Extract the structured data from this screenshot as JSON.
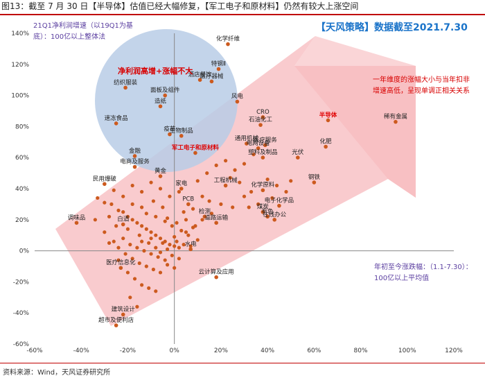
{
  "figure": {
    "title": "图13：截至 7 月 30 日【半导体】估值已经大幅修复，【军工电子和原材料】仍然有较大上涨空间",
    "source": "资料来源：Wind，天风证券研究所"
  },
  "chart_data": {
    "type": "scatter",
    "xlim": [
      -60,
      120
    ],
    "ylim": [
      -60,
      140
    ],
    "x_ticks": [
      -60,
      -40,
      -20,
      0,
      20,
      40,
      60,
      80,
      100,
      120
    ],
    "y_ticks": [
      -60,
      -40,
      -20,
      0,
      20,
      40,
      60,
      80,
      100,
      120,
      140
    ],
    "x_tick_labels": [
      "-60%",
      "-40%",
      "-20%",
      "0%",
      "20%",
      "40%",
      "60%",
      "80%",
      "100%",
      "120%"
    ],
    "y_tick_labels": [
      "-60%",
      "-40%",
      "-20%",
      "0%",
      "20%",
      "40%",
      "60%",
      "80%",
      "100%",
      "120%",
      "140%"
    ],
    "y_axis_label": "21Q1净利润增速（以19Q1为基底）：100亿以上整体法",
    "x_axis_label": "年初至今涨跌幅：（1.1-7.30）：100亿以上平均值",
    "badge": "【天风策略】数据截至2021.7.30",
    "circle_label": "净利润高增+涨幅不大",
    "arrow_annotation": "一年维度的涨幅大小与当年扣非增速高低，呈现单调正相关关系",
    "dot_color": "#cc5a1e",
    "labeled_points": [
      {
        "name": "化学纤维",
        "x": 23,
        "y": 133,
        "hl": false
      },
      {
        "name": "特钢Ⅱ",
        "x": 19,
        "y": 117,
        "hl": false
      },
      {
        "name": "医疗器械",
        "x": 16,
        "y": 109,
        "hl": false
      },
      {
        "name": "纺织服装",
        "x": -21,
        "y": 105,
        "hl": false
      },
      {
        "name": "酒店餐饮",
        "x": 11,
        "y": 110,
        "hl": false
      },
      {
        "name": "面板及组件",
        "x": -4,
        "y": 100,
        "hl": false
      },
      {
        "name": "风电",
        "x": 27,
        "y": 96,
        "hl": false
      },
      {
        "name": "造纸",
        "x": -6,
        "y": 93,
        "hl": false
      },
      {
        "name": "速冻食品",
        "x": -25,
        "y": 82,
        "hl": false
      },
      {
        "name": "CRO",
        "x": 38,
        "y": 86,
        "hl": false
      },
      {
        "name": "半导体",
        "x": 66,
        "y": 84,
        "hl": true
      },
      {
        "name": "稀有金属",
        "x": 95,
        "y": 83,
        "hl": false
      },
      {
        "name": "石油化工",
        "x": 37,
        "y": 81,
        "hl": false
      },
      {
        "name": "疫苗",
        "x": -2,
        "y": 75,
        "hl": false
      },
      {
        "name": "生物制品",
        "x": 3,
        "y": 74,
        "hl": false
      },
      {
        "name": "通用机械",
        "x": 31,
        "y": 69,
        "hl": false
      },
      {
        "name": "电网设备",
        "x": 36,
        "y": 66,
        "hl": false
      },
      {
        "name": "军工电子和原材料",
        "x": 9,
        "y": 63,
        "hl": true
      },
      {
        "name": "医疗服务",
        "x": 39,
        "y": 68,
        "hl": false
      },
      {
        "name": "化肥",
        "x": 65,
        "y": 67,
        "hl": false
      },
      {
        "name": "金融",
        "x": -17,
        "y": 61,
        "hl": false
      },
      {
        "name": "塑料及制品",
        "x": 38,
        "y": 60,
        "hl": false
      },
      {
        "name": "光伏",
        "x": 53,
        "y": 60,
        "hl": false
      },
      {
        "name": "电商及服务",
        "x": -17,
        "y": 54,
        "hl": false
      },
      {
        "name": "钢铁",
        "x": 60,
        "y": 44,
        "hl": false
      },
      {
        "name": "黄金",
        "x": -6,
        "y": 48,
        "hl": false
      },
      {
        "name": "民用爆破",
        "x": -30,
        "y": 43,
        "hl": false
      },
      {
        "name": "工程机械",
        "x": 22,
        "y": 42,
        "hl": false
      },
      {
        "name": "化学原料",
        "x": 38,
        "y": 39,
        "hl": false
      },
      {
        "name": "家电",
        "x": 3,
        "y": 40,
        "hl": false
      },
      {
        "name": "PCB",
        "x": 6,
        "y": 30,
        "hl": false
      },
      {
        "name": "电子化学品",
        "x": 45,
        "y": 29,
        "hl": false
      },
      {
        "name": "调味品",
        "x": -42,
        "y": 18,
        "hl": false
      },
      {
        "name": "检测",
        "x": 13,
        "y": 22,
        "hl": false
      },
      {
        "name": "煤炭",
        "x": 38,
        "y": 25,
        "hl": false
      },
      {
        "name": "道路运输",
        "x": 18,
        "y": 18,
        "hl": false
      },
      {
        "name": "有色",
        "x": 40,
        "y": 22,
        "hl": false
      },
      {
        "name": "在线办公",
        "x": 43,
        "y": 20,
        "hl": false
      },
      {
        "name": "白酒",
        "x": -22,
        "y": 17,
        "hl": false
      },
      {
        "name": "水电",
        "x": 7,
        "y": 1,
        "hl": false
      },
      {
        "name": "医疗信息化",
        "x": -23,
        "y": -11,
        "hl": false
      },
      {
        "name": "云计算及应用",
        "x": 18,
        "y": -17,
        "hl": false
      },
      {
        "name": "建筑设计",
        "x": -22,
        "y": -41,
        "hl": false
      },
      {
        "name": "超市及便利店",
        "x": -25,
        "y": -48,
        "hl": false
      }
    ],
    "unlabeled_points": [
      [
        -33,
        34
      ],
      [
        -30,
        31
      ],
      [
        -27,
        30
      ],
      [
        -24,
        26
      ],
      [
        -22,
        25
      ],
      [
        -20,
        22
      ],
      [
        -18,
        20
      ],
      [
        -16,
        18
      ],
      [
        -14,
        16
      ],
      [
        -12,
        14
      ],
      [
        -10,
        12
      ],
      [
        -8,
        10
      ],
      [
        -6,
        8
      ],
      [
        -4,
        6
      ],
      [
        -2,
        4
      ],
      [
        0,
        3
      ],
      [
        2,
        2
      ],
      [
        -25,
        16
      ],
      [
        -28,
        22
      ],
      [
        -20,
        14
      ],
      [
        -15,
        10
      ],
      [
        -10,
        8
      ],
      [
        -5,
        5
      ],
      [
        0,
        9
      ],
      [
        5,
        12
      ],
      [
        8,
        15
      ],
      [
        -18,
        30
      ],
      [
        -14,
        28
      ],
      [
        -12,
        24
      ],
      [
        -8,
        22
      ],
      [
        -4,
        19
      ],
      [
        -1,
        16
      ],
      [
        3,
        13
      ],
      [
        6,
        10
      ],
      [
        10,
        7
      ],
      [
        -22,
        8
      ],
      [
        -19,
        4
      ],
      [
        -16,
        2
      ],
      [
        -13,
        0
      ],
      [
        -10,
        -2
      ],
      [
        -7,
        -4
      ],
      [
        -4,
        -6
      ],
      [
        -1,
        -3
      ],
      [
        2,
        -5
      ],
      [
        -26,
        6
      ],
      [
        -24,
        2
      ],
      [
        -21,
        -2
      ],
      [
        -18,
        -5
      ],
      [
        -15,
        -8
      ],
      [
        -12,
        -10
      ],
      [
        -9,
        -12
      ],
      [
        -6,
        -14
      ],
      [
        -3,
        -9
      ],
      [
        0,
        -11
      ],
      [
        -20,
        -14
      ],
      [
        -17,
        -18
      ],
      [
        -14,
        -22
      ],
      [
        -11,
        -24
      ],
      [
        -8,
        -26
      ],
      [
        12,
        35
      ],
      [
        15,
        32
      ],
      [
        20,
        30
      ],
      [
        25,
        28
      ],
      [
        30,
        35
      ],
      [
        33,
        38
      ],
      [
        28,
        44
      ],
      [
        24,
        47
      ],
      [
        10,
        45
      ],
      [
        14,
        50
      ],
      [
        18,
        55
      ],
      [
        22,
        58
      ],
      [
        26,
        52
      ],
      [
        30,
        56
      ],
      [
        34,
        62
      ],
      [
        40,
        46
      ],
      [
        44,
        42
      ],
      [
        48,
        38
      ],
      [
        50,
        45
      ],
      [
        42,
        34
      ],
      [
        36,
        30
      ],
      [
        32,
        28
      ],
      [
        -2,
        35
      ],
      [
        2,
        38
      ],
      [
        -6,
        40
      ],
      [
        -10,
        44
      ],
      [
        -14,
        38
      ],
      [
        -18,
        42
      ],
      [
        -22,
        35
      ],
      [
        -26,
        39
      ],
      [
        -5,
        28
      ],
      [
        -9,
        32
      ],
      [
        4,
        25
      ],
      [
        8,
        27
      ],
      [
        12,
        20
      ],
      [
        16,
        24
      ],
      [
        -3,
        21
      ],
      [
        1,
        18
      ],
      [
        5,
        20
      ],
      [
        9,
        16
      ],
      [
        -30,
        12
      ],
      [
        -34,
        20
      ],
      [
        -28,
        5
      ],
      [
        -24,
        -6
      ],
      [
        -19,
        -30
      ],
      [
        -16,
        -36
      ],
      [
        -8,
        2
      ],
      [
        -6,
        -1
      ],
      [
        -3,
        1
      ],
      [
        1,
        6
      ],
      [
        4,
        4
      ],
      [
        7,
        3
      ],
      [
        -11,
        5
      ],
      [
        -14,
        6
      ]
    ]
  }
}
